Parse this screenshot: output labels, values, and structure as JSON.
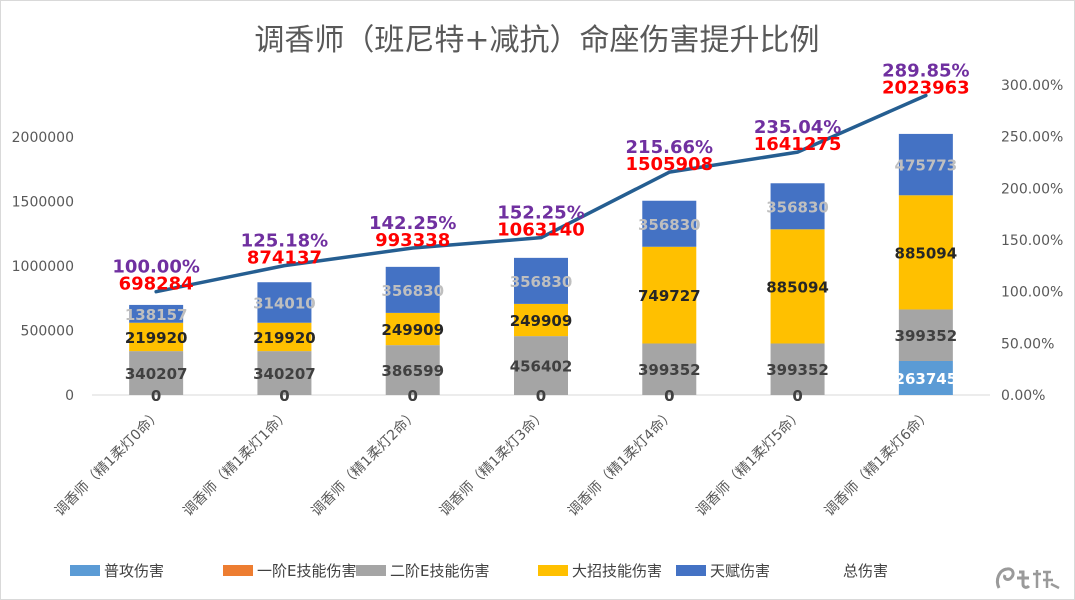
{
  "chart_data": {
    "type": "bar",
    "stacked": true,
    "title": "调香师（班尼特+减抗）命座伤害提升比例",
    "categories": [
      "调香师（精1柔灯0命）",
      "调香师（精1柔灯1命）",
      "调香师（精1柔灯2命）",
      "调香师（精1柔灯3命）",
      "调香师（精1柔灯4命）",
      "调香师（精1柔灯5命）",
      "调香师（精1柔灯6命）"
    ],
    "series": [
      {
        "name": "普攻伤害",
        "color": "#5b9bd5",
        "values": [
          0,
          0,
          0,
          0,
          0,
          0,
          263745
        ]
      },
      {
        "name": "一阶E技能伤害",
        "color": "#ed7d31",
        "values": [
          0,
          0,
          0,
          0,
          0,
          0,
          0
        ]
      },
      {
        "name": "二阶E技能伤害",
        "color": "#a5a5a5",
        "values": [
          340207,
          340207,
          386599,
          456402,
          399352,
          399352,
          399352
        ]
      },
      {
        "name": "大招技能伤害",
        "color": "#ffc000",
        "values": [
          219920,
          219920,
          249909,
          249909,
          749727,
          885094,
          885094
        ]
      },
      {
        "name": "天赋伤害",
        "color": "#4472c4",
        "values": [
          138157,
          314010,
          356830,
          356830,
          356830,
          356830,
          475773
        ]
      }
    ],
    "totals": {
      "name": "总伤害",
      "values": [
        698284,
        874137,
        993338,
        1063140,
        1505908,
        1641275,
        2023963
      ]
    },
    "percentages": {
      "values": [
        100.0,
        125.18,
        142.25,
        152.25,
        215.66,
        235.04,
        289.85
      ],
      "labels": [
        "100.00%",
        "125.18%",
        "142.25%",
        "152.25%",
        "215.66%",
        "235.04%",
        "289.85%"
      ],
      "color": "#255e91"
    },
    "y_left": {
      "ylim": [
        0,
        2000000
      ],
      "ticks": [
        "0",
        "500000",
        "1000000",
        "1500000",
        "2000000"
      ]
    },
    "y_right": {
      "ylim": [
        0,
        300
      ],
      "ticks": [
        "0.00%",
        "50.00%",
        "100.00%",
        "150.00%",
        "200.00%",
        "250.00%",
        "300.00%"
      ]
    },
    "grid": false,
    "legend_position": "bottom",
    "label_colors": {
      "普攻伤害": "#ffffff",
      "二阶E技能伤害": "#404040",
      "大招技能伤害": "#262626",
      "天赋伤害": "#bfbfbf",
      "zero": "#404040"
    }
  }
}
